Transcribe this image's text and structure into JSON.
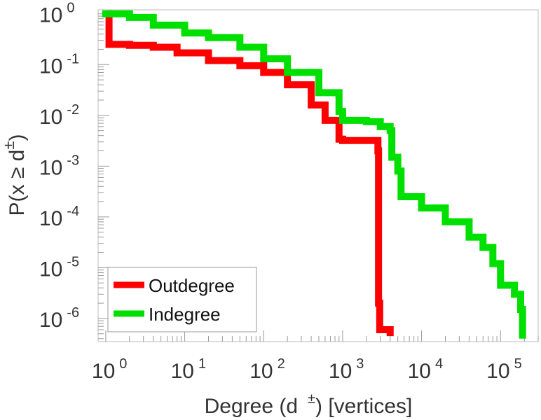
{
  "chart_data": {
    "type": "line",
    "x_scale": "log",
    "y_scale": "log",
    "xlabel_prefix": "Degree (d",
    "xlabel_sup": "±",
    "xlabel_suffix": ") [vertices]",
    "ylabel_prefix": "P(x ≥ d",
    "ylabel_sup": "±",
    "ylabel_suffix": ")",
    "xlim": [
      0.8,
      300000
    ],
    "ylim": [
      3.5e-07,
      1.2
    ],
    "x_ticks": [
      {
        "base": "10",
        "exp": "0",
        "value": 1
      },
      {
        "base": "10",
        "exp": "1",
        "value": 10
      },
      {
        "base": "10",
        "exp": "2",
        "value": 100
      },
      {
        "base": "10",
        "exp": "3",
        "value": 1000
      },
      {
        "base": "10",
        "exp": "4",
        "value": 10000
      },
      {
        "base": "10",
        "exp": "5",
        "value": 100000
      }
    ],
    "y_ticks": [
      {
        "base": "10",
        "exp": "0",
        "value": 1
      },
      {
        "base": "10",
        "exp": "-1",
        "value": 0.1
      },
      {
        "base": "10",
        "exp": "-2",
        "value": 0.01
      },
      {
        "base": "10",
        "exp": "-3",
        "value": 0.001
      },
      {
        "base": "10",
        "exp": "-4",
        "value": 0.0001
      },
      {
        "base": "10",
        "exp": "-5",
        "value": 1e-05
      },
      {
        "base": "10",
        "exp": "-6",
        "value": 1e-06
      }
    ],
    "legend_position": "bottom-left",
    "series": [
      {
        "name": "Outdegree",
        "color": "#ff0000",
        "points": [
          [
            1,
            1
          ],
          [
            1.1,
            0.25
          ],
          [
            2,
            0.24
          ],
          [
            4,
            0.22
          ],
          [
            8,
            0.17
          ],
          [
            20,
            0.12
          ],
          [
            50,
            0.095
          ],
          [
            100,
            0.07
          ],
          [
            200,
            0.04
          ],
          [
            400,
            0.016
          ],
          [
            600,
            0.008
          ],
          [
            900,
            0.0034
          ],
          [
            1000,
            0.0032
          ],
          [
            2500,
            0.0032
          ],
          [
            2800,
            0.002
          ],
          [
            2850,
            2e-06
          ],
          [
            2950,
            6e-07
          ],
          [
            4000,
            4.5e-07
          ]
        ]
      },
      {
        "name": "Indegree",
        "color": "#00e000",
        "points": [
          [
            0.9,
            1
          ],
          [
            2,
            0.85
          ],
          [
            4,
            0.6
          ],
          [
            10,
            0.42
          ],
          [
            20,
            0.34
          ],
          [
            50,
            0.22
          ],
          [
            100,
            0.13
          ],
          [
            200,
            0.07
          ],
          [
            500,
            0.028
          ],
          [
            900,
            0.012
          ],
          [
            1000,
            0.008
          ],
          [
            2000,
            0.0075
          ],
          [
            3000,
            0.006
          ],
          [
            4000,
            0.005
          ],
          [
            4200,
            0.0015
          ],
          [
            5000,
            0.0008
          ],
          [
            5500,
            0.00025
          ],
          [
            10000,
            0.00015
          ],
          [
            20000,
            8e-05
          ],
          [
            40000,
            4e-05
          ],
          [
            60000,
            2.5e-05
          ],
          [
            80000,
            1.2e-05
          ],
          [
            100000,
            4.5e-06
          ],
          [
            150000,
            3e-06
          ],
          [
            180000,
            1.5e-06
          ],
          [
            190000,
            4e-07
          ]
        ]
      }
    ]
  }
}
